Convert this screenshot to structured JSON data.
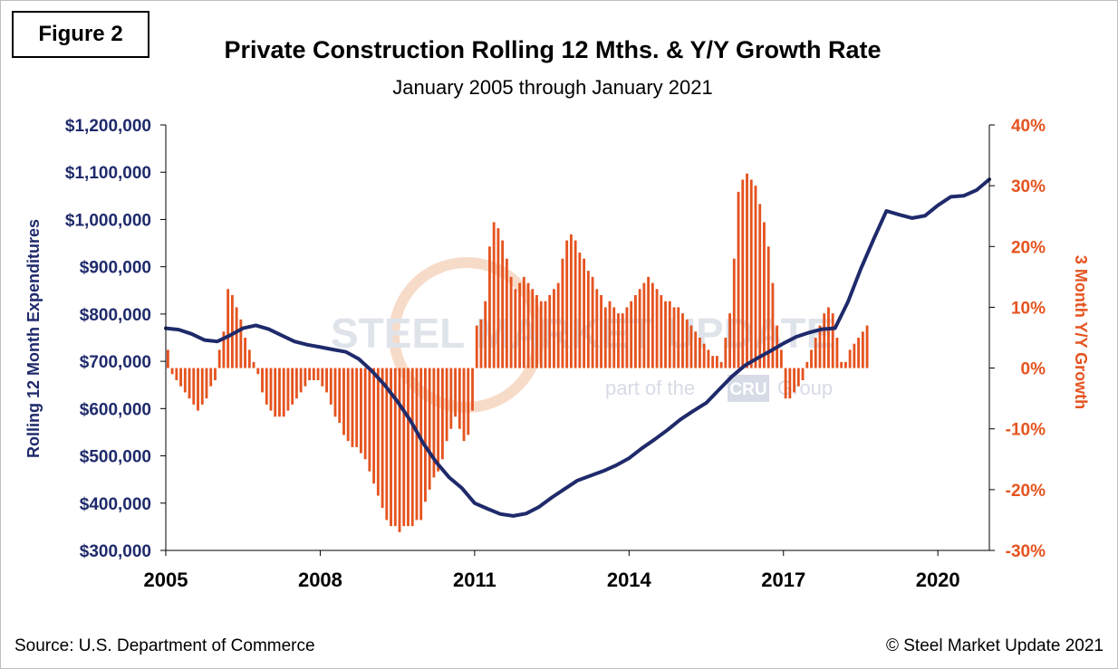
{
  "figure_label": "Figure 2",
  "source": "Source: U.S. Department of Commerce",
  "copyright": "© Steel Market Update 2021",
  "watermark": {
    "text": "STEEL MARKET UPDATE",
    "sub_before": "part of the",
    "sub_logo": "CRU",
    "sub_after": "Group"
  },
  "colors": {
    "line": "#1f2a6b",
    "bars": "#e5531f",
    "axis": "#000000"
  },
  "chart_data": {
    "type": "bar+line",
    "title": "Private Construction Rolling 12 Mths. & Y/Y Growth Rate",
    "subtitle": "January 2005 through January 2021",
    "y_left_label": "Rolling 12 Month Expenditures",
    "y_right_label": "3 Month Y/Y Growth",
    "y_left_range": [
      300000,
      1200000
    ],
    "y_left_ticks": [
      "$1,200,000",
      "$1,100,000",
      "$1,000,000",
      "$900,000",
      "$800,000",
      "$700,000",
      "$600,000",
      "$500,000",
      "$400,000",
      "$300,000"
    ],
    "y_right_range": [
      -30,
      40
    ],
    "y_right_ticks": [
      "40%",
      "30%",
      "20%",
      "10%",
      "0%",
      "-10%",
      "-20%",
      "-30%"
    ],
    "x_range": [
      "2005-01",
      "2021-01"
    ],
    "x_ticks": [
      "2005",
      "2008",
      "2011",
      "2014",
      "2017",
      "2020"
    ],
    "x_tick_dates": [
      "2005-01",
      "2008-01",
      "2011-01",
      "2014-01",
      "2017-01",
      "2020-01"
    ],
    "series": [
      {
        "name": "Rolling 12 Month Expenditures",
        "kind": "line",
        "axis": "left",
        "points": [
          [
            "2005-01",
            770000
          ],
          [
            "2005-04",
            767000
          ],
          [
            "2005-07",
            758000
          ],
          [
            "2005-10",
            745000
          ],
          [
            "2006-01",
            742000
          ],
          [
            "2006-04",
            755000
          ],
          [
            "2006-07",
            770000
          ],
          [
            "2006-10",
            776000
          ],
          [
            "2007-01",
            768000
          ],
          [
            "2007-04",
            755000
          ],
          [
            "2007-07",
            742000
          ],
          [
            "2007-10",
            735000
          ],
          [
            "2008-01",
            730000
          ],
          [
            "2008-04",
            725000
          ],
          [
            "2008-07",
            720000
          ],
          [
            "2008-10",
            705000
          ],
          [
            "2009-01",
            680000
          ],
          [
            "2009-04",
            650000
          ],
          [
            "2009-07",
            615000
          ],
          [
            "2009-10",
            575000
          ],
          [
            "2010-01",
            527000
          ],
          [
            "2010-04",
            487000
          ],
          [
            "2010-07",
            455000
          ],
          [
            "2010-10",
            432000
          ],
          [
            "2011-01",
            400000
          ],
          [
            "2011-04",
            388000
          ],
          [
            "2011-07",
            377000
          ],
          [
            "2011-10",
            373000
          ],
          [
            "2012-01",
            378000
          ],
          [
            "2012-04",
            392000
          ],
          [
            "2012-07",
            412000
          ],
          [
            "2012-10",
            430000
          ],
          [
            "2013-01",
            448000
          ],
          [
            "2013-04",
            458000
          ],
          [
            "2013-07",
            468000
          ],
          [
            "2013-10",
            480000
          ],
          [
            "2014-01",
            495000
          ],
          [
            "2014-04",
            516000
          ],
          [
            "2014-07",
            535000
          ],
          [
            "2014-10",
            555000
          ],
          [
            "2015-01",
            577000
          ],
          [
            "2015-04",
            595000
          ],
          [
            "2015-07",
            612000
          ],
          [
            "2015-10",
            640000
          ],
          [
            "2016-01",
            668000
          ],
          [
            "2016-04",
            691000
          ],
          [
            "2016-07",
            707000
          ],
          [
            "2016-10",
            722000
          ],
          [
            "2017-01",
            738000
          ],
          [
            "2017-04",
            752000
          ],
          [
            "2017-07",
            761000
          ],
          [
            "2017-10",
            768000
          ],
          [
            "2018-01",
            770000
          ],
          [
            "2018-04",
            825000
          ],
          [
            "2018-07",
            895000
          ],
          [
            "2018-10",
            958000
          ],
          [
            "2019-01",
            1018000
          ],
          [
            "2019-04",
            1010000
          ],
          [
            "2019-07",
            1003000
          ],
          [
            "2019-10",
            1008000
          ],
          [
            "2020-01",
            1030000
          ],
          [
            "2020-04",
            1048000
          ],
          [
            "2020-07",
            1050000
          ],
          [
            "2020-10",
            1062000
          ],
          [
            "2021-01",
            1085000
          ]
        ]
      },
      {
        "name": "3 Month Y/Y Growth",
        "kind": "bar",
        "axis": "right",
        "start": "2005-01",
        "step_months": 1,
        "values": [
          3,
          -1,
          -2,
          -3,
          -4,
          -5,
          -6,
          -7,
          -6,
          -5,
          -3,
          -2,
          3,
          6,
          13,
          12,
          10,
          8,
          5,
          3,
          1,
          -1,
          -4,
          -6,
          -7,
          -8,
          -8,
          -8,
          -7,
          -6,
          -5,
          -4,
          -3,
          -2,
          -2,
          -2,
          -3,
          -4,
          -6,
          -8,
          -9,
          -11,
          -12,
          -13,
          -13,
          -14,
          -15,
          -17,
          -19,
          -21,
          -23,
          -25,
          -26,
          -26,
          -27,
          -26,
          -26,
          -26,
          -25,
          -25,
          -22,
          -20,
          -18,
          -17,
          -15,
          -12,
          -10,
          -8,
          -10,
          -12,
          -11,
          -7,
          7,
          8,
          11,
          20,
          24,
          23,
          21,
          18,
          15,
          13,
          14,
          15,
          14,
          13,
          12,
          11,
          11,
          12,
          13,
          14,
          18,
          21,
          22,
          21,
          19,
          18,
          16,
          15,
          13,
          12,
          10,
          11,
          10,
          9,
          9,
          10,
          11,
          12,
          13,
          14,
          15,
          14,
          13,
          12,
          11,
          11,
          10,
          10,
          9,
          8,
          7,
          6,
          5,
          4,
          3,
          2,
          2,
          1,
          5,
          9,
          18,
          29,
          31,
          32,
          31,
          30,
          27,
          24,
          20,
          14,
          7,
          3,
          -5,
          -5,
          -4,
          -3,
          -2,
          1,
          3,
          5,
          7,
          9,
          10,
          9,
          5,
          1,
          1,
          3,
          4,
          5,
          6,
          7
        ]
      }
    ],
    "grid": false
  }
}
